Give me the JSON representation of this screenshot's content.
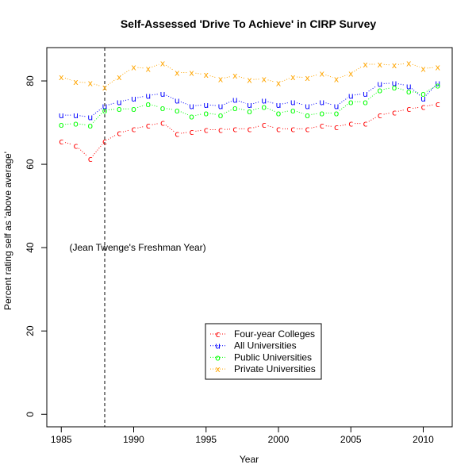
{
  "chart_data": {
    "type": "line",
    "title": "Self-Assessed 'Drive To Achieve' in CIRP Survey",
    "xlabel": "Year",
    "ylabel": "Percent rating self as 'above average'",
    "xlim": [
      1984.0,
      2012.0
    ],
    "ylim": [
      -3,
      88
    ],
    "xticks": [
      1985,
      1990,
      1995,
      2000,
      2005,
      2010
    ],
    "yticks": [
      0,
      20,
      40,
      60,
      80
    ],
    "grid": false,
    "legend_position": "bottom-center",
    "x": [
      1985,
      1986,
      1987,
      1988,
      1989,
      1990,
      1991,
      1992,
      1993,
      1994,
      1995,
      1996,
      1997,
      1998,
      1999,
      2000,
      2001,
      2002,
      2003,
      2004,
      2005,
      2006,
      2007,
      2008,
      2009,
      2010,
      2011
    ],
    "series": [
      {
        "name": "Four-year Colleges",
        "symbol": "c",
        "color": "#ff0000",
        "values": [
          65.5,
          64.5,
          61.3,
          65.5,
          67.5,
          68.5,
          69.3,
          70.0,
          67.3,
          67.8,
          68.3,
          68.3,
          68.5,
          68.5,
          69.5,
          68.5,
          68.5,
          68.5,
          69.3,
          69.0,
          69.8,
          69.8,
          71.8,
          72.5,
          73.3,
          73.8,
          74.5
        ]
      },
      {
        "name": "All Universities",
        "symbol": "u",
        "color": "#0000ff",
        "values": [
          71.8,
          71.8,
          71.3,
          74.0,
          75.0,
          75.8,
          76.5,
          77.0,
          75.3,
          74.0,
          74.3,
          74.0,
          75.5,
          74.3,
          75.3,
          74.3,
          75.0,
          74.0,
          75.0,
          74.0,
          76.5,
          77.0,
          79.3,
          79.5,
          78.8,
          75.8,
          79.5
        ]
      },
      {
        "name": "Public Universities",
        "symbol": "o",
        "color": "#00ff00",
        "values": [
          69.5,
          69.8,
          69.3,
          73.0,
          73.3,
          73.3,
          74.5,
          73.5,
          73.0,
          71.5,
          72.3,
          71.8,
          73.5,
          72.8,
          73.8,
          72.3,
          73.0,
          71.8,
          72.3,
          72.3,
          75.0,
          75.0,
          77.8,
          78.5,
          77.5,
          77.0,
          79.0
        ]
      },
      {
        "name": "Private Universities",
        "symbol": "x",
        "color": "#ffa500",
        "values": [
          81.0,
          79.8,
          79.5,
          78.5,
          81.0,
          83.3,
          83.0,
          84.3,
          82.0,
          82.0,
          81.5,
          80.5,
          81.3,
          80.3,
          80.5,
          79.5,
          81.0,
          80.8,
          81.8,
          80.5,
          81.8,
          84.0,
          84.0,
          83.8,
          84.3,
          83.0,
          83.3
        ]
      }
    ],
    "reference_line": {
      "x": 1988,
      "style": "dashed",
      "color": "#000000"
    },
    "annotation": {
      "text": "(Jean Twenge's Freshman Year)",
      "x": 1986.0,
      "y": 40
    }
  }
}
